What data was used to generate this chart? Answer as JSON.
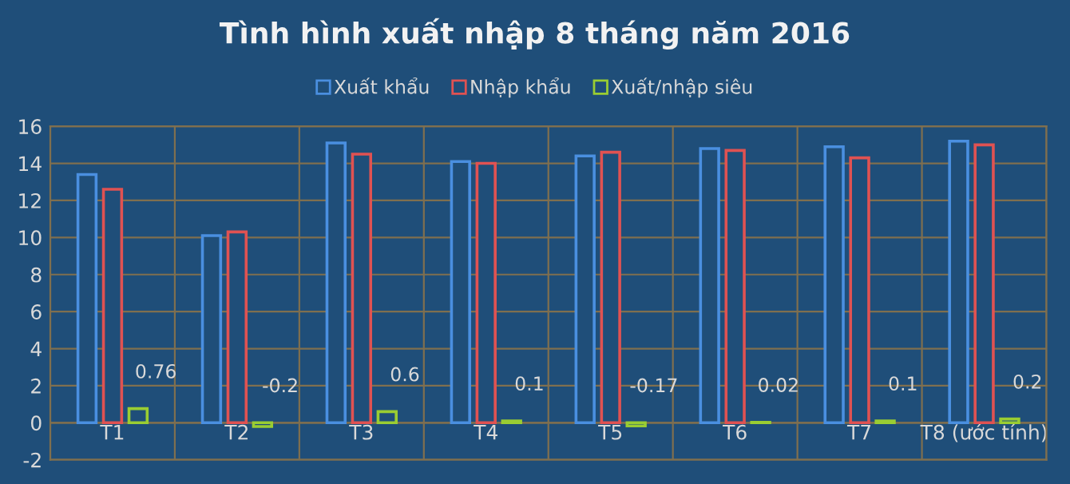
{
  "chart_data": {
    "type": "bar",
    "title": "Tình hình xuất nhập 8 tháng năm 2016",
    "categories": [
      "T1",
      "T2",
      "T3",
      "T4",
      "T5",
      "T6",
      "T7",
      "T8 (ước tính)"
    ],
    "series": [
      {
        "name": "Xuất khẩu",
        "color": "#4a8fe0",
        "values": [
          13.4,
          10.1,
          15.1,
          14.1,
          14.4,
          14.8,
          14.9,
          15.2
        ]
      },
      {
        "name": "Nhập khẩu",
        "color": "#e05252",
        "values": [
          12.6,
          10.3,
          14.5,
          14.0,
          14.6,
          14.7,
          14.3,
          15.0
        ]
      },
      {
        "name": "Xuất/nhập siêu",
        "color": "#9acd32",
        "values": [
          0.76,
          -0.2,
          0.6,
          0.1,
          -0.17,
          0.02,
          0.1,
          0.2
        ],
        "value_labels": [
          "0.76",
          "-0.2",
          "0.6",
          "0.1",
          "-0.17",
          "0.02",
          "0.1",
          "0.2"
        ]
      }
    ],
    "ylim": [
      -2,
      16
    ],
    "yticks": [
      -2,
      0,
      2,
      4,
      6,
      8,
      10,
      12,
      14,
      16
    ],
    "grid": true,
    "legend": "top"
  }
}
